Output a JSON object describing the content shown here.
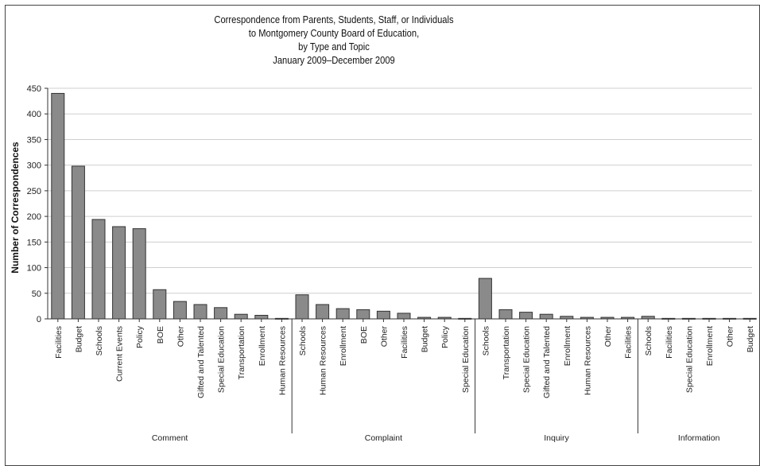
{
  "chart_data": {
    "type": "bar",
    "title": [
      "Correspondence from Parents, Students, Staff, or Individuals",
      "to Montgomery County Board of Education,",
      "by Type and Topic",
      "January 2009–December 2009"
    ],
    "ylabel": "Number of Correspondences",
    "ylim": [
      0,
      450
    ],
    "yticks": [
      0,
      50,
      100,
      150,
      200,
      250,
      300,
      350,
      400,
      450
    ],
    "grid": true,
    "bar_color": "#8a8a8a",
    "groups": [
      {
        "name": "Comment",
        "categories": [
          "Facilities",
          "Budget",
          "Schools",
          "Current Events",
          "Policy",
          "BOE",
          "Other",
          "Gifted and Talented",
          "Special Education",
          "Transportation",
          "Enrollment",
          "Human Resources"
        ],
        "values": [
          440,
          298,
          194,
          180,
          176,
          57,
          34,
          28,
          22,
          9,
          7,
          1
        ]
      },
      {
        "name": "Complaint",
        "categories": [
          "Schools",
          "Human Resources",
          "Enrollment",
          "BOE",
          "Other",
          "Facilities",
          "Budget",
          "Policy",
          "Special Education"
        ],
        "values": [
          47,
          28,
          20,
          18,
          15,
          11,
          3,
          3,
          1
        ]
      },
      {
        "name": "Inquiry",
        "categories": [
          "Schools",
          "Transportation",
          "Special Education",
          "Gifted and Talented",
          "Enrollment",
          "Human Resources",
          "Other",
          "Facilities"
        ],
        "values": [
          79,
          18,
          13,
          9,
          5,
          3,
          3,
          3
        ]
      },
      {
        "name": "Information",
        "categories": [
          "Schools",
          "Facilities",
          "Special Education",
          "Enrollment",
          "Other",
          "Budget"
        ],
        "values": [
          5,
          1,
          1,
          1,
          1,
          1
        ]
      }
    ]
  }
}
